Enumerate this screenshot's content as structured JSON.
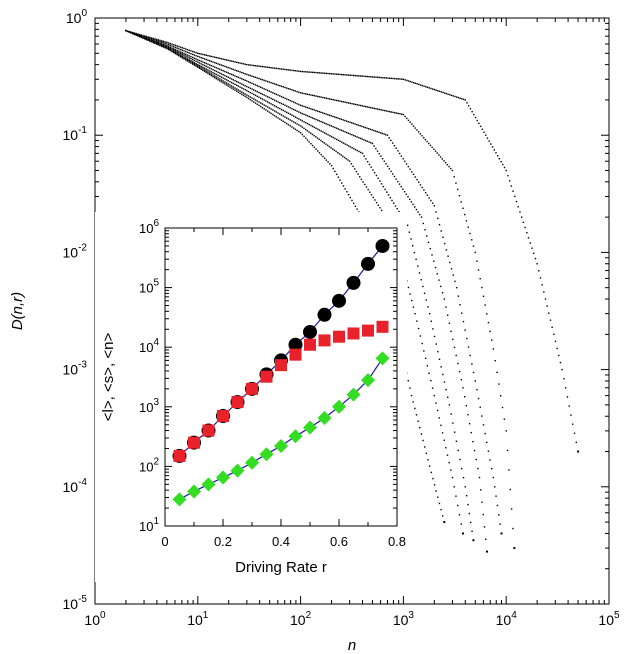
{
  "chart_data": [
    {
      "type": "scatter",
      "title": "",
      "xlabel": "n",
      "ylabel": "D(n,r)",
      "xscale": "log",
      "yscale": "log",
      "xlim": [
        1,
        100000
      ],
      "ylim": [
        1e-05,
        1
      ],
      "x_ticks": [
        {
          "base": "10",
          "exp": "0"
        },
        {
          "base": "10",
          "exp": "1"
        },
        {
          "base": "10",
          "exp": "2"
        },
        {
          "base": "10",
          "exp": "3"
        },
        {
          "base": "10",
          "exp": "4"
        },
        {
          "base": "10",
          "exp": "5"
        }
      ],
      "y_ticks": [
        {
          "base": "10",
          "exp": "-5"
        },
        {
          "base": "10",
          "exp": "-4"
        },
        {
          "base": "10",
          "exp": "-3"
        },
        {
          "base": "10",
          "exp": "-2"
        },
        {
          "base": "10",
          "exp": "-1"
        },
        {
          "base": "10",
          "exp": "0"
        }
      ],
      "marker_color": "#000000",
      "series": [
        {
          "values": [
            [
              2,
              0.78
            ],
            [
              5,
              0.55
            ],
            [
              10,
              0.38
            ],
            [
              30,
              0.21
            ],
            [
              100,
              0.105
            ],
            [
              200,
              0.055
            ],
            [
              500,
              0.014
            ],
            [
              800,
              0.003
            ],
            [
              1200,
              0.0006
            ],
            [
              1800,
              0.00015
            ],
            [
              2500,
              5e-05
            ]
          ]
        },
        {
          "values": [
            [
              2,
              0.78
            ],
            [
              5,
              0.55
            ],
            [
              10,
              0.39
            ],
            [
              30,
              0.22
            ],
            [
              100,
              0.12
            ],
            [
              300,
              0.06
            ],
            [
              800,
              0.016
            ],
            [
              1300,
              0.003
            ],
            [
              2000,
              0.0006
            ],
            [
              3000,
              0.00012
            ],
            [
              3800,
              4e-05
            ]
          ]
        },
        {
          "values": [
            [
              2,
              0.78
            ],
            [
              5,
              0.56
            ],
            [
              10,
              0.4
            ],
            [
              30,
              0.24
            ],
            [
              100,
              0.135
            ],
            [
              400,
              0.07
            ],
            [
              1100,
              0.017
            ],
            [
              1800,
              0.003
            ],
            [
              2800,
              0.0005
            ],
            [
              4000,
              0.0001
            ],
            [
              4800,
              3.5e-05
            ]
          ]
        },
        {
          "values": [
            [
              2,
              0.78
            ],
            [
              5,
              0.57
            ],
            [
              10,
              0.42
            ],
            [
              30,
              0.26
            ],
            [
              100,
              0.155
            ],
            [
              500,
              0.085
            ],
            [
              1500,
              0.02
            ],
            [
              2500,
              0.004
            ],
            [
              3800,
              0.0007
            ],
            [
              5500,
              0.00012
            ],
            [
              6500,
              2.8e-05
            ]
          ]
        },
        {
          "values": [
            [
              2,
              0.78
            ],
            [
              5,
              0.58
            ],
            [
              10,
              0.44
            ],
            [
              30,
              0.29
            ],
            [
              100,
              0.18
            ],
            [
              700,
              0.1
            ],
            [
              2000,
              0.025
            ],
            [
              3300,
              0.005
            ],
            [
              5000,
              0.0008
            ],
            [
              7500,
              0.00012
            ],
            [
              9000,
              4e-05
            ]
          ]
        },
        {
          "values": [
            [
              2,
              0.78
            ],
            [
              5,
              0.6
            ],
            [
              10,
              0.47
            ],
            [
              30,
              0.33
            ],
            [
              100,
              0.23
            ],
            [
              1000,
              0.15
            ],
            [
              3000,
              0.05
            ],
            [
              5000,
              0.01
            ],
            [
              7500,
              0.0015
            ],
            [
              10000,
              0.0003
            ],
            [
              12000,
              3e-05
            ]
          ]
        },
        {
          "values": [
            [
              2,
              0.78
            ],
            [
              5,
              0.62
            ],
            [
              10,
              0.5
            ],
            [
              30,
              0.4
            ],
            [
              100,
              0.35
            ],
            [
              1000,
              0.3
            ],
            [
              4000,
              0.2
            ],
            [
              10000,
              0.05
            ],
            [
              20000,
              0.008
            ],
            [
              35000,
              0.001
            ],
            [
              50000,
              0.0002
            ]
          ]
        }
      ]
    },
    {
      "type": "scatter",
      "title": "",
      "xlabel": "Driving Rate r",
      "ylabel": "<l>, <s>, <n>",
      "xscale": "linear",
      "yscale": "log",
      "xlim": [
        0,
        0.8
      ],
      "ylim": [
        10,
        1000000
      ],
      "x_ticks": [
        "0",
        "0.2",
        "0.4",
        "0.6",
        "0.8"
      ],
      "y_ticks": [
        {
          "base": "10",
          "exp": "1"
        },
        {
          "base": "10",
          "exp": "2"
        },
        {
          "base": "10",
          "exp": "3"
        },
        {
          "base": "10",
          "exp": "4"
        },
        {
          "base": "10",
          "exp": "5"
        },
        {
          "base": "10",
          "exp": "6"
        }
      ],
      "fit_color": "#1a1aa0",
      "series": [
        {
          "marker": "circle",
          "color": "#000000",
          "x": [
            0.05,
            0.1,
            0.15,
            0.2,
            0.25,
            0.3,
            0.35,
            0.4,
            0.45,
            0.5,
            0.55,
            0.6,
            0.65,
            0.7,
            0.75
          ],
          "values": [
            150,
            250,
            400,
            700,
            1200,
            2000,
            3500,
            6000,
            11000,
            18000,
            35000,
            60000,
            120000,
            250000,
            500000
          ]
        },
        {
          "marker": "square",
          "color": "#e8212a",
          "x": [
            0.05,
            0.1,
            0.15,
            0.2,
            0.25,
            0.3,
            0.35,
            0.4,
            0.45,
            0.5,
            0.55,
            0.6,
            0.65,
            0.7,
            0.75
          ],
          "values": [
            150,
            250,
            400,
            700,
            1200,
            2000,
            3200,
            5000,
            7500,
            11000,
            13000,
            15000,
            17000,
            19000,
            22000
          ]
        },
        {
          "marker": "diamond",
          "color": "#33dd22",
          "x": [
            0.05,
            0.1,
            0.15,
            0.2,
            0.25,
            0.3,
            0.35,
            0.4,
            0.45,
            0.5,
            0.55,
            0.6,
            0.65,
            0.7,
            0.75
          ],
          "values": [
            28,
            38,
            50,
            65,
            85,
            115,
            160,
            220,
            320,
            450,
            650,
            1000,
            1600,
            2800,
            6500
          ]
        }
      ]
    }
  ]
}
